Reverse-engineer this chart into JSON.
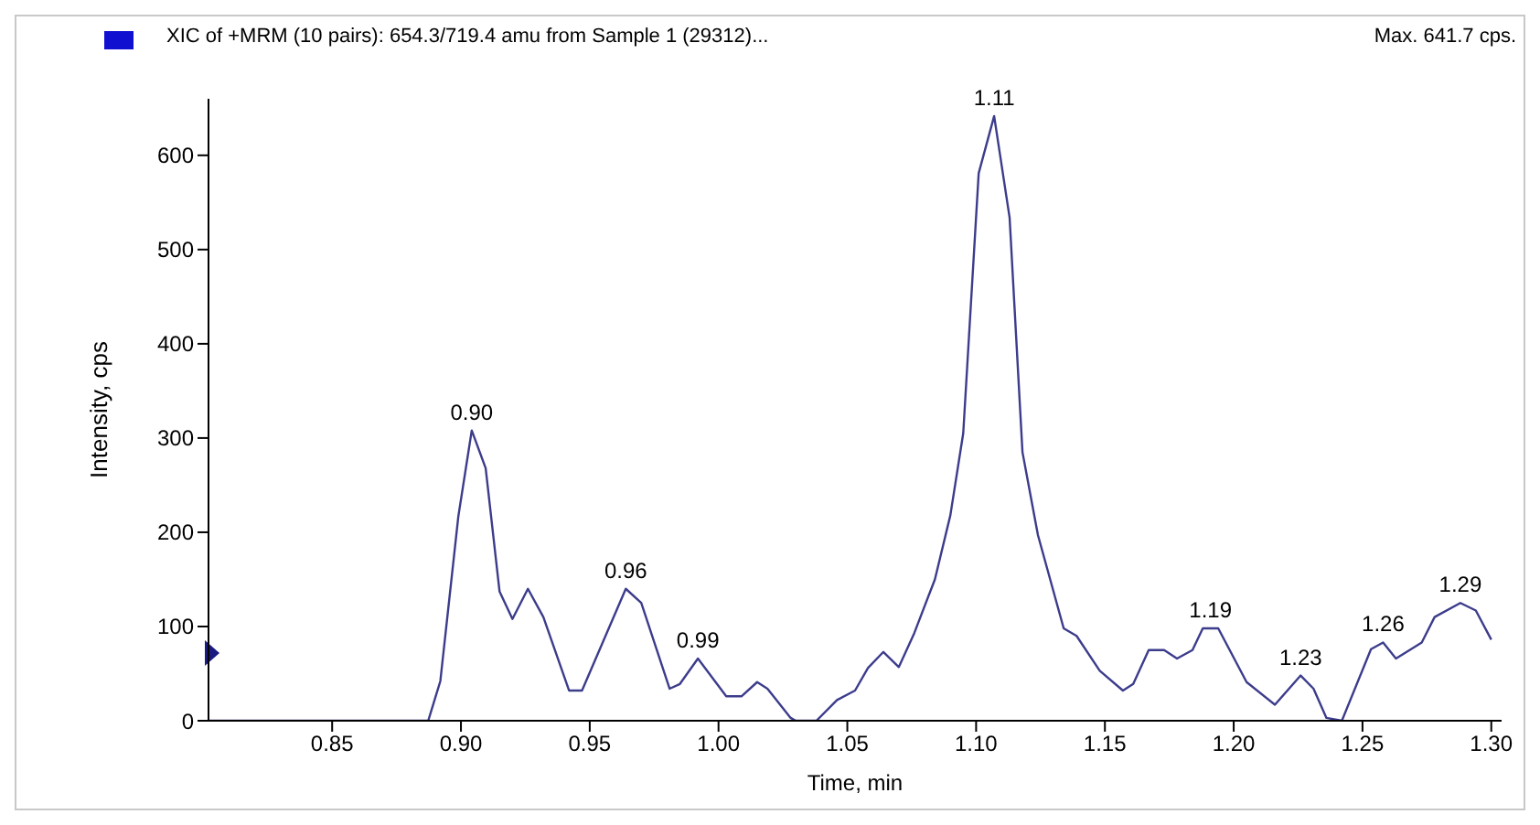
{
  "chart_data": {
    "type": "line",
    "title": "XIC of +MRM (10 pairs): 654.3/719.4 amu from Sample 1 (29312)...",
    "subtitle": "Max. 641.7 cps.",
    "xlabel": "Time, min",
    "ylabel": "Intensity, cps",
    "series": [
      {
        "color": "#3c3c8c",
        "x": [
          0.802,
          0.8873,
          0.892,
          0.899,
          0.9042,
          0.9096,
          0.915,
          0.92,
          0.926,
          0.932,
          0.942,
          0.947,
          0.964,
          0.97,
          0.981,
          0.985,
          0.992,
          1.003,
          1.009,
          1.015,
          1.019,
          1.028,
          1.03,
          1.038,
          1.046,
          1.053,
          1.058,
          1.064,
          1.07,
          1.076,
          1.084,
          1.09,
          1.095,
          1.101,
          1.107,
          1.113,
          1.118,
          1.124,
          1.134,
          1.139,
          1.148,
          1.157,
          1.161,
          1.167,
          1.173,
          1.178,
          1.184,
          1.188,
          1.194,
          1.205,
          1.216,
          1.226,
          1.231,
          1.236,
          1.242,
          1.2533,
          1.258,
          1.263,
          1.273,
          1.278,
          1.288,
          1.294,
          1.3
        ],
        "values": [
          0,
          0,
          42,
          217,
          308,
          268,
          137,
          108,
          140,
          110,
          32,
          32,
          140,
          125,
          34,
          39,
          66,
          26,
          26,
          41,
          34,
          3,
          0,
          0,
          22,
          32,
          56,
          73,
          57,
          93,
          150,
          218,
          305,
          581,
          641.7,
          534,
          285,
          197,
          98,
          90,
          53,
          32,
          39,
          75,
          75,
          66,
          75,
          98,
          98,
          41,
          17,
          48,
          34,
          3,
          0,
          76,
          83,
          66,
          83,
          110,
          125,
          117,
          86
        ]
      }
    ],
    "xlim": [
      0.802,
      1.304
    ],
    "ylim": [
      0,
      660
    ],
    "xticks": [
      {
        "value": 0.85,
        "label": "0.85"
      },
      {
        "value": 0.9,
        "label": "0.90"
      },
      {
        "value": 0.95,
        "label": "0.95"
      },
      {
        "value": 1.0,
        "label": "1.00"
      },
      {
        "value": 1.05,
        "label": "1.05"
      },
      {
        "value": 1.1,
        "label": "1.10"
      },
      {
        "value": 1.15,
        "label": "1.15"
      },
      {
        "value": 1.2,
        "label": "1.20"
      },
      {
        "value": 1.25,
        "label": "1.25"
      },
      {
        "value": 1.3,
        "label": "1.30"
      }
    ],
    "yticks": [
      0,
      100,
      200,
      300,
      400,
      500,
      600
    ],
    "grid": false,
    "marker": "none",
    "line_style": "solid",
    "annotations": [
      {
        "text": "0.90",
        "x": 0.9042,
        "y": 308
      },
      {
        "text": "0.96",
        "x": 0.964,
        "y": 140
      },
      {
        "text": "0.99",
        "x": 0.992,
        "y": 66
      },
      {
        "text": "1.11",
        "x": 1.107,
        "y": 641.7
      },
      {
        "text": "1.19",
        "x": 1.191,
        "y": 98
      },
      {
        "text": "1.23",
        "x": 1.226,
        "y": 48
      },
      {
        "text": "1.26",
        "x": 1.258,
        "y": 83
      },
      {
        "text": "1.29",
        "x": 1.288,
        "y": 125
      }
    ]
  }
}
